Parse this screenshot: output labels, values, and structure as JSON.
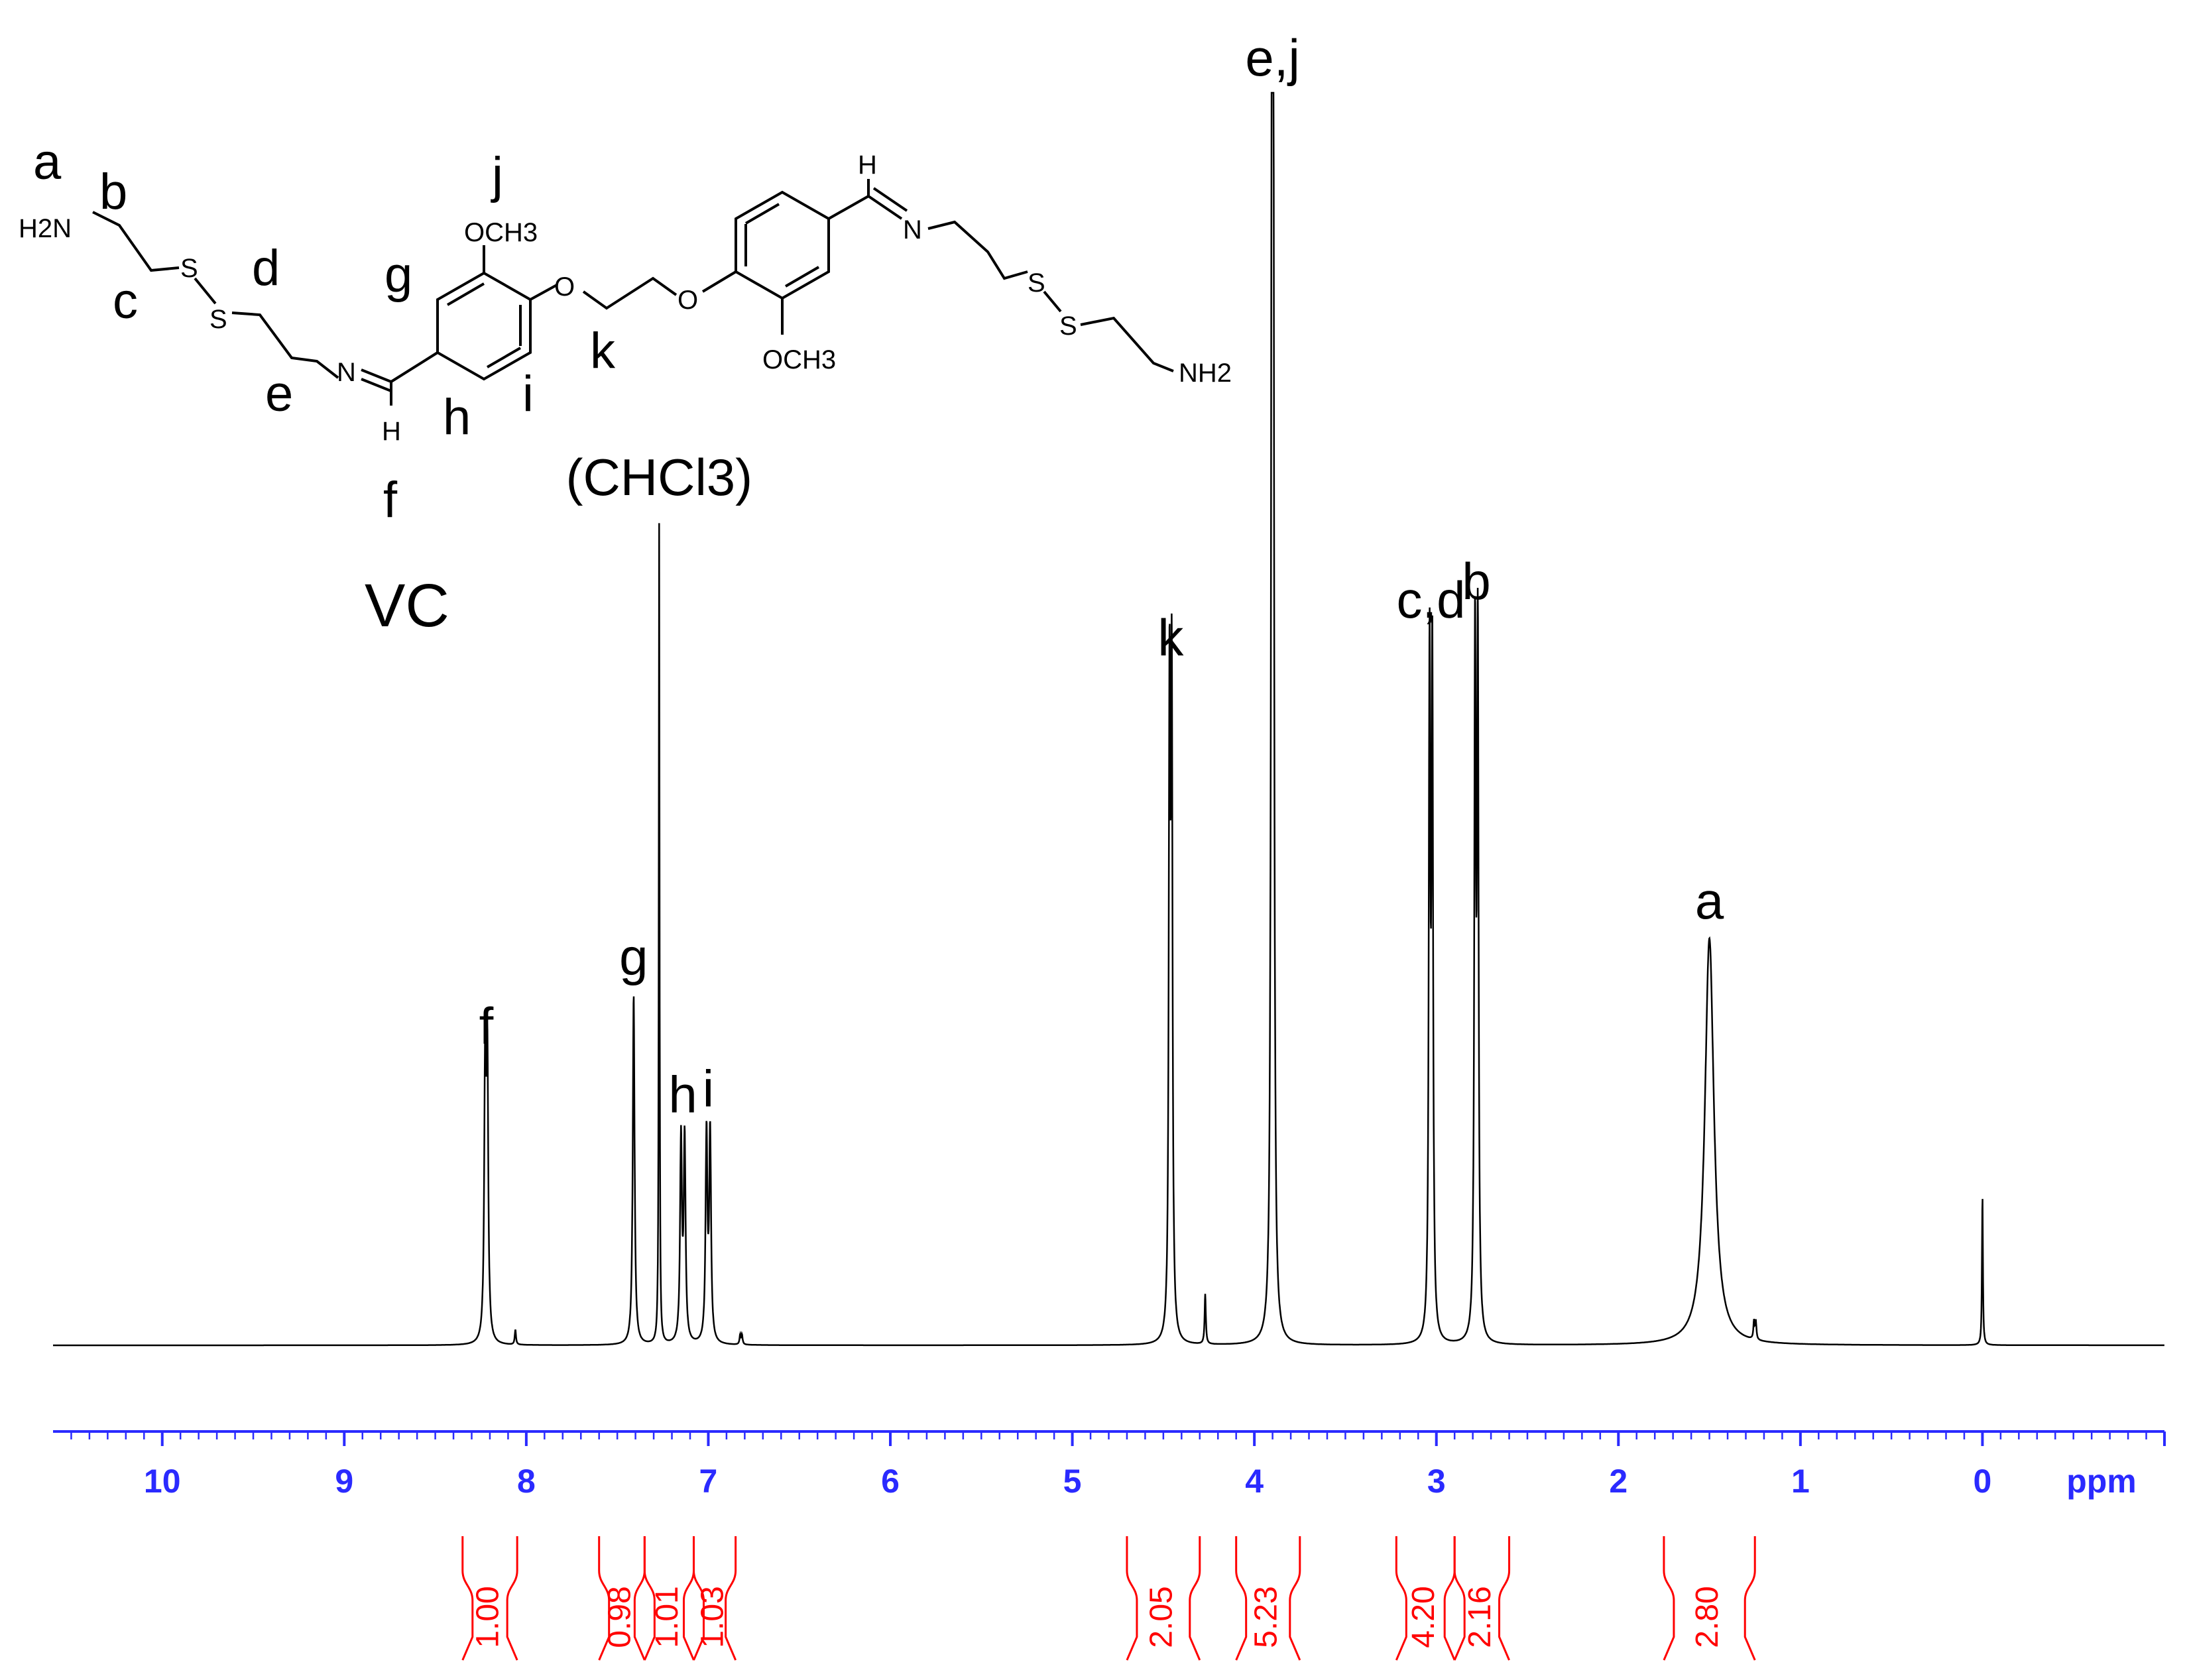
{
  "colors": {
    "spectrum": "#000000",
    "axis": "#2a2aff",
    "integral": "#ff0000",
    "structure": "#000000"
  },
  "sample_label": "VC",
  "solvent_label": "(CHCl3)",
  "structure": {
    "atoms": {
      "H2N_left": "H2N",
      "NH2_right": "NH2",
      "OCH3_top": "OCH3",
      "OCH3_bottom": "OCH3",
      "O_left": "O",
      "O_right": "O",
      "N_left": "N",
      "N_right": "N",
      "H_left": "H",
      "H_right": "H",
      "S": "S"
    },
    "labels": {
      "a": "a",
      "b": "b",
      "c": "c",
      "d": "d",
      "e": "e",
      "f": "f",
      "g": "g",
      "h": "h",
      "i": "i",
      "j": "j",
      "k": "k"
    }
  },
  "chart_data": {
    "type": "line",
    "title": "",
    "xlabel": "ppm",
    "ylabel": "",
    "xlim": [
      10.6,
      -1.0
    ],
    "x_reversed": true,
    "ylim": [
      0,
      1.0
    ],
    "x_ticks": [
      "10",
      "9",
      "8",
      "7",
      "6",
      "5",
      "4",
      "3",
      "2",
      "1",
      "0"
    ],
    "grid": false,
    "peaks": [
      {
        "center": 8.22,
        "height": 0.225,
        "width": 0.006,
        "split": 0.012,
        "label": "f"
      },
      {
        "center": 8.06,
        "height": 0.012,
        "width": 0.004,
        "split": 0,
        "label": ""
      },
      {
        "center": 7.41,
        "height": 0.28,
        "width": 0.006,
        "split": 0,
        "label": "g"
      },
      {
        "center": 7.27,
        "height": 0.655,
        "width": 0.0025,
        "split": 0,
        "label": "(CHCl3)"
      },
      {
        "center": 7.14,
        "height": 0.17,
        "width": 0.006,
        "split": 0.02,
        "label": "h"
      },
      {
        "center": 7.0,
        "height": 0.175,
        "width": 0.006,
        "split": 0.02,
        "label": "i"
      },
      {
        "center": 6.82,
        "height": 0.008,
        "width": 0.004,
        "split": 0.01,
        "label": ""
      },
      {
        "center": 4.46,
        "height": 0.535,
        "width": 0.005,
        "split": 0.012,
        "label": "k"
      },
      {
        "center": 4.27,
        "height": 0.04,
        "width": 0.004,
        "split": 0,
        "label": ""
      },
      {
        "center": 3.9,
        "height": 0.998,
        "width": 0.005,
        "split": 0.008,
        "label": "e,j"
      },
      {
        "center": 3.03,
        "height": 0.565,
        "width": 0.005,
        "split": 0.015,
        "label": "c,d"
      },
      {
        "center": 2.78,
        "height": 0.58,
        "width": 0.005,
        "split": 0.015,
        "label": "b"
      },
      {
        "center": 1.5,
        "height": 0.325,
        "width": 0.03,
        "split": 0,
        "label": "a"
      },
      {
        "center": 1.25,
        "height": 0.015,
        "width": 0.004,
        "split": 0.01,
        "label": ""
      },
      {
        "center": 0.0,
        "height": 0.12,
        "width": 0.003,
        "split": 0,
        "label": ""
      }
    ],
    "integrals": [
      {
        "value": "1.00",
        "from": 8.35,
        "to": 8.05
      },
      {
        "value": "0.98",
        "from": 7.6,
        "to": 7.35
      },
      {
        "value": "1.01",
        "from": 7.35,
        "to": 7.08
      },
      {
        "value": "1.03",
        "from": 7.08,
        "to": 6.85
      },
      {
        "value": "2.05",
        "from": 4.7,
        "to": 4.3
      },
      {
        "value": "5.23",
        "from": 4.1,
        "to": 3.75
      },
      {
        "value": "4.20",
        "from": 3.22,
        "to": 2.9
      },
      {
        "value": "2.16",
        "from": 2.9,
        "to": 2.6
      },
      {
        "value": "2.80",
        "from": 1.75,
        "to": 1.25
      }
    ]
  }
}
